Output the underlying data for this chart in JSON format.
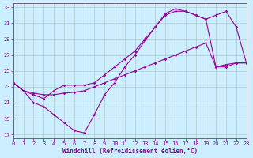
{
  "bg_color": "#cceeff",
  "grid_color": "#aacccc",
  "line_color": "#990099",
  "xlim": [
    0,
    23
  ],
  "ylim": [
    16.5,
    33.5
  ],
  "xticks": [
    0,
    1,
    2,
    3,
    4,
    5,
    6,
    7,
    8,
    9,
    10,
    11,
    12,
    13,
    14,
    15,
    16,
    17,
    18,
    19,
    20,
    21,
    22,
    23
  ],
  "yticks": [
    17,
    19,
    21,
    23,
    25,
    27,
    29,
    31,
    33
  ],
  "xlabel": "Windchill (Refroidissement éolien,°C)",
  "curve_down_x": [
    0,
    1,
    2,
    3,
    4,
    5,
    6,
    7,
    8,
    9,
    10,
    11,
    12,
    13,
    14,
    15,
    16,
    17,
    18,
    19,
    20,
    21,
    22,
    23
  ],
  "curve_down_y": [
    23.5,
    22.5,
    21.0,
    20.5,
    19.5,
    18.5,
    17.5,
    17.2,
    19.5,
    22.0,
    23.5,
    25.5,
    27.0,
    28.8,
    30.5,
    32.2,
    32.8,
    32.5,
    32.0,
    31.5,
    32.0,
    32.5,
    30.5,
    26.0
  ],
  "curve_up_x": [
    0,
    1,
    2,
    3,
    4,
    5,
    6,
    7,
    8,
    9,
    10,
    11,
    12,
    13,
    14,
    15,
    16,
    17,
    18,
    19,
    20,
    21,
    22,
    23
  ],
  "curve_up_y": [
    23.5,
    22.5,
    22.0,
    21.5,
    22.5,
    23.2,
    23.2,
    23.2,
    23.5,
    24.5,
    25.5,
    26.5,
    27.5,
    29.0,
    30.5,
    32.0,
    32.5,
    32.5,
    32.0,
    31.5,
    25.5,
    25.5,
    26.0,
    26.0
  ],
  "line_diag_x": [
    0,
    1,
    2,
    3,
    4,
    5,
    6,
    7,
    8,
    9,
    10,
    11,
    12,
    13,
    14,
    15,
    16,
    17,
    18,
    19,
    20,
    21,
    22,
    23
  ],
  "line_diag_y": [
    23.5,
    22.5,
    22.2,
    22.0,
    22.0,
    22.2,
    22.3,
    22.5,
    23.0,
    23.5,
    24.0,
    24.5,
    25.0,
    25.5,
    26.0,
    26.5,
    27.0,
    27.5,
    28.0,
    28.5,
    25.5,
    25.8,
    26.0,
    26.0
  ],
  "marker": "D",
  "marker_size": 1.8,
  "line_width": 0.8
}
